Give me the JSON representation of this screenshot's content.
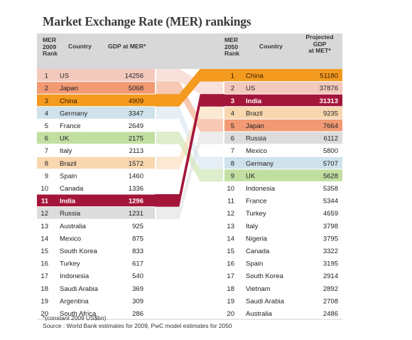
{
  "title": "Market Exchange Rate (MER) rankings",
  "headers": {
    "left_rank": [
      "MER",
      "2009",
      "Rank"
    ],
    "left_country": "Country",
    "left_gdp": "GDP at MER*",
    "right_rank": [
      "MER",
      "2050",
      "Rank"
    ],
    "right_country": "Country",
    "right_gdp": [
      "Projected",
      "GDP",
      "at MET*"
    ]
  },
  "footnote": "*(constant 2009 US$bn)",
  "source": "Source : World Bank estimates for 2009, PwC model estimates for 2050",
  "colors": {
    "grey": "#d8d8d8",
    "pink": "#f4c9bd",
    "salmon": "#f19a74",
    "orange": "#f39a1f",
    "blue": "#cfe2ec",
    "green": "#c2dfa2",
    "peach": "#f8d7b0",
    "crimson": "#a4153a",
    "rowgrey": "#dcdcdc"
  },
  "chart_data": {
    "type": "table",
    "title": "Market Exchange Rate (MER) rankings",
    "unit": "constant 2009 US$bn",
    "rankings_2009": [
      {
        "rank": 1,
        "country": "US",
        "gdp": 14256
      },
      {
        "rank": 2,
        "country": "Japan",
        "gdp": 5068
      },
      {
        "rank": 3,
        "country": "China",
        "gdp": 4909
      },
      {
        "rank": 4,
        "country": "Germany",
        "gdp": 3347
      },
      {
        "rank": 5,
        "country": "France",
        "gdp": 2649
      },
      {
        "rank": 6,
        "country": "UK",
        "gdp": 2175
      },
      {
        "rank": 7,
        "country": "Italy",
        "gdp": 2113
      },
      {
        "rank": 8,
        "country": "Brazil",
        "gdp": 1572
      },
      {
        "rank": 9,
        "country": "Spain",
        "gdp": 1460
      },
      {
        "rank": 10,
        "country": "Canada",
        "gdp": 1336
      },
      {
        "rank": 11,
        "country": "India",
        "gdp": 1296
      },
      {
        "rank": 12,
        "country": "Russia",
        "gdp": 1231
      },
      {
        "rank": 13,
        "country": "Australia",
        "gdp": 925
      },
      {
        "rank": 14,
        "country": "Mexico",
        "gdp": 875
      },
      {
        "rank": 15,
        "country": "South Korea",
        "gdp": 833
      },
      {
        "rank": 16,
        "country": "Turkey",
        "gdp": 617
      },
      {
        "rank": 17,
        "country": "Indonesia",
        "gdp": 540
      },
      {
        "rank": 18,
        "country": "Saudi Arabia",
        "gdp": 369
      },
      {
        "rank": 19,
        "country": "Argentina",
        "gdp": 309
      },
      {
        "rank": 20,
        "country": "South Africa",
        "gdp": 286
      }
    ],
    "rankings_2050": [
      {
        "rank": 1,
        "country": "China",
        "gdp": 51180
      },
      {
        "rank": 2,
        "country": "US",
        "gdp": 37876
      },
      {
        "rank": 3,
        "country": "India",
        "gdp": 31313
      },
      {
        "rank": 4,
        "country": "Brazil",
        "gdp": 9235
      },
      {
        "rank": 5,
        "country": "Japan",
        "gdp": 7664
      },
      {
        "rank": 6,
        "country": "Russia",
        "gdp": 6112
      },
      {
        "rank": 7,
        "country": "Mexico",
        "gdp": 5800
      },
      {
        "rank": 8,
        "country": "Germany",
        "gdp": 5707
      },
      {
        "rank": 9,
        "country": "UK",
        "gdp": 5628
      },
      {
        "rank": 10,
        "country": "Indonesia",
        "gdp": 5358
      },
      {
        "rank": 11,
        "country": "France",
        "gdp": 5344
      },
      {
        "rank": 12,
        "country": "Turkey",
        "gdp": 4659
      },
      {
        "rank": 13,
        "country": "Italy",
        "gdp": 3798
      },
      {
        "rank": 14,
        "country": "Nigeria",
        "gdp": 3795
      },
      {
        "rank": 15,
        "country": "Canada",
        "gdp": 3322
      },
      {
        "rank": 16,
        "country": "Spain",
        "gdp": 3195
      },
      {
        "rank": 17,
        "country": "South Korea",
        "gdp": 2914
      },
      {
        "rank": 18,
        "country": "Vietnam",
        "gdp": 2892
      },
      {
        "rank": 19,
        "country": "Saudi Arabia",
        "gdp": 2708
      },
      {
        "rank": 20,
        "country": "Australia",
        "gdp": 2486
      }
    ],
    "highlights": [
      {
        "country": "US",
        "color": "pink"
      },
      {
        "country": "Japan",
        "color": "salmon"
      },
      {
        "country": "China",
        "color": "orange"
      },
      {
        "country": "Germany",
        "color": "blue"
      },
      {
        "country": "UK",
        "color": "green"
      },
      {
        "country": "Brazil",
        "color": "peach"
      },
      {
        "country": "India",
        "color": "crimson"
      },
      {
        "country": "Russia",
        "color": "rowgrey"
      }
    ]
  }
}
